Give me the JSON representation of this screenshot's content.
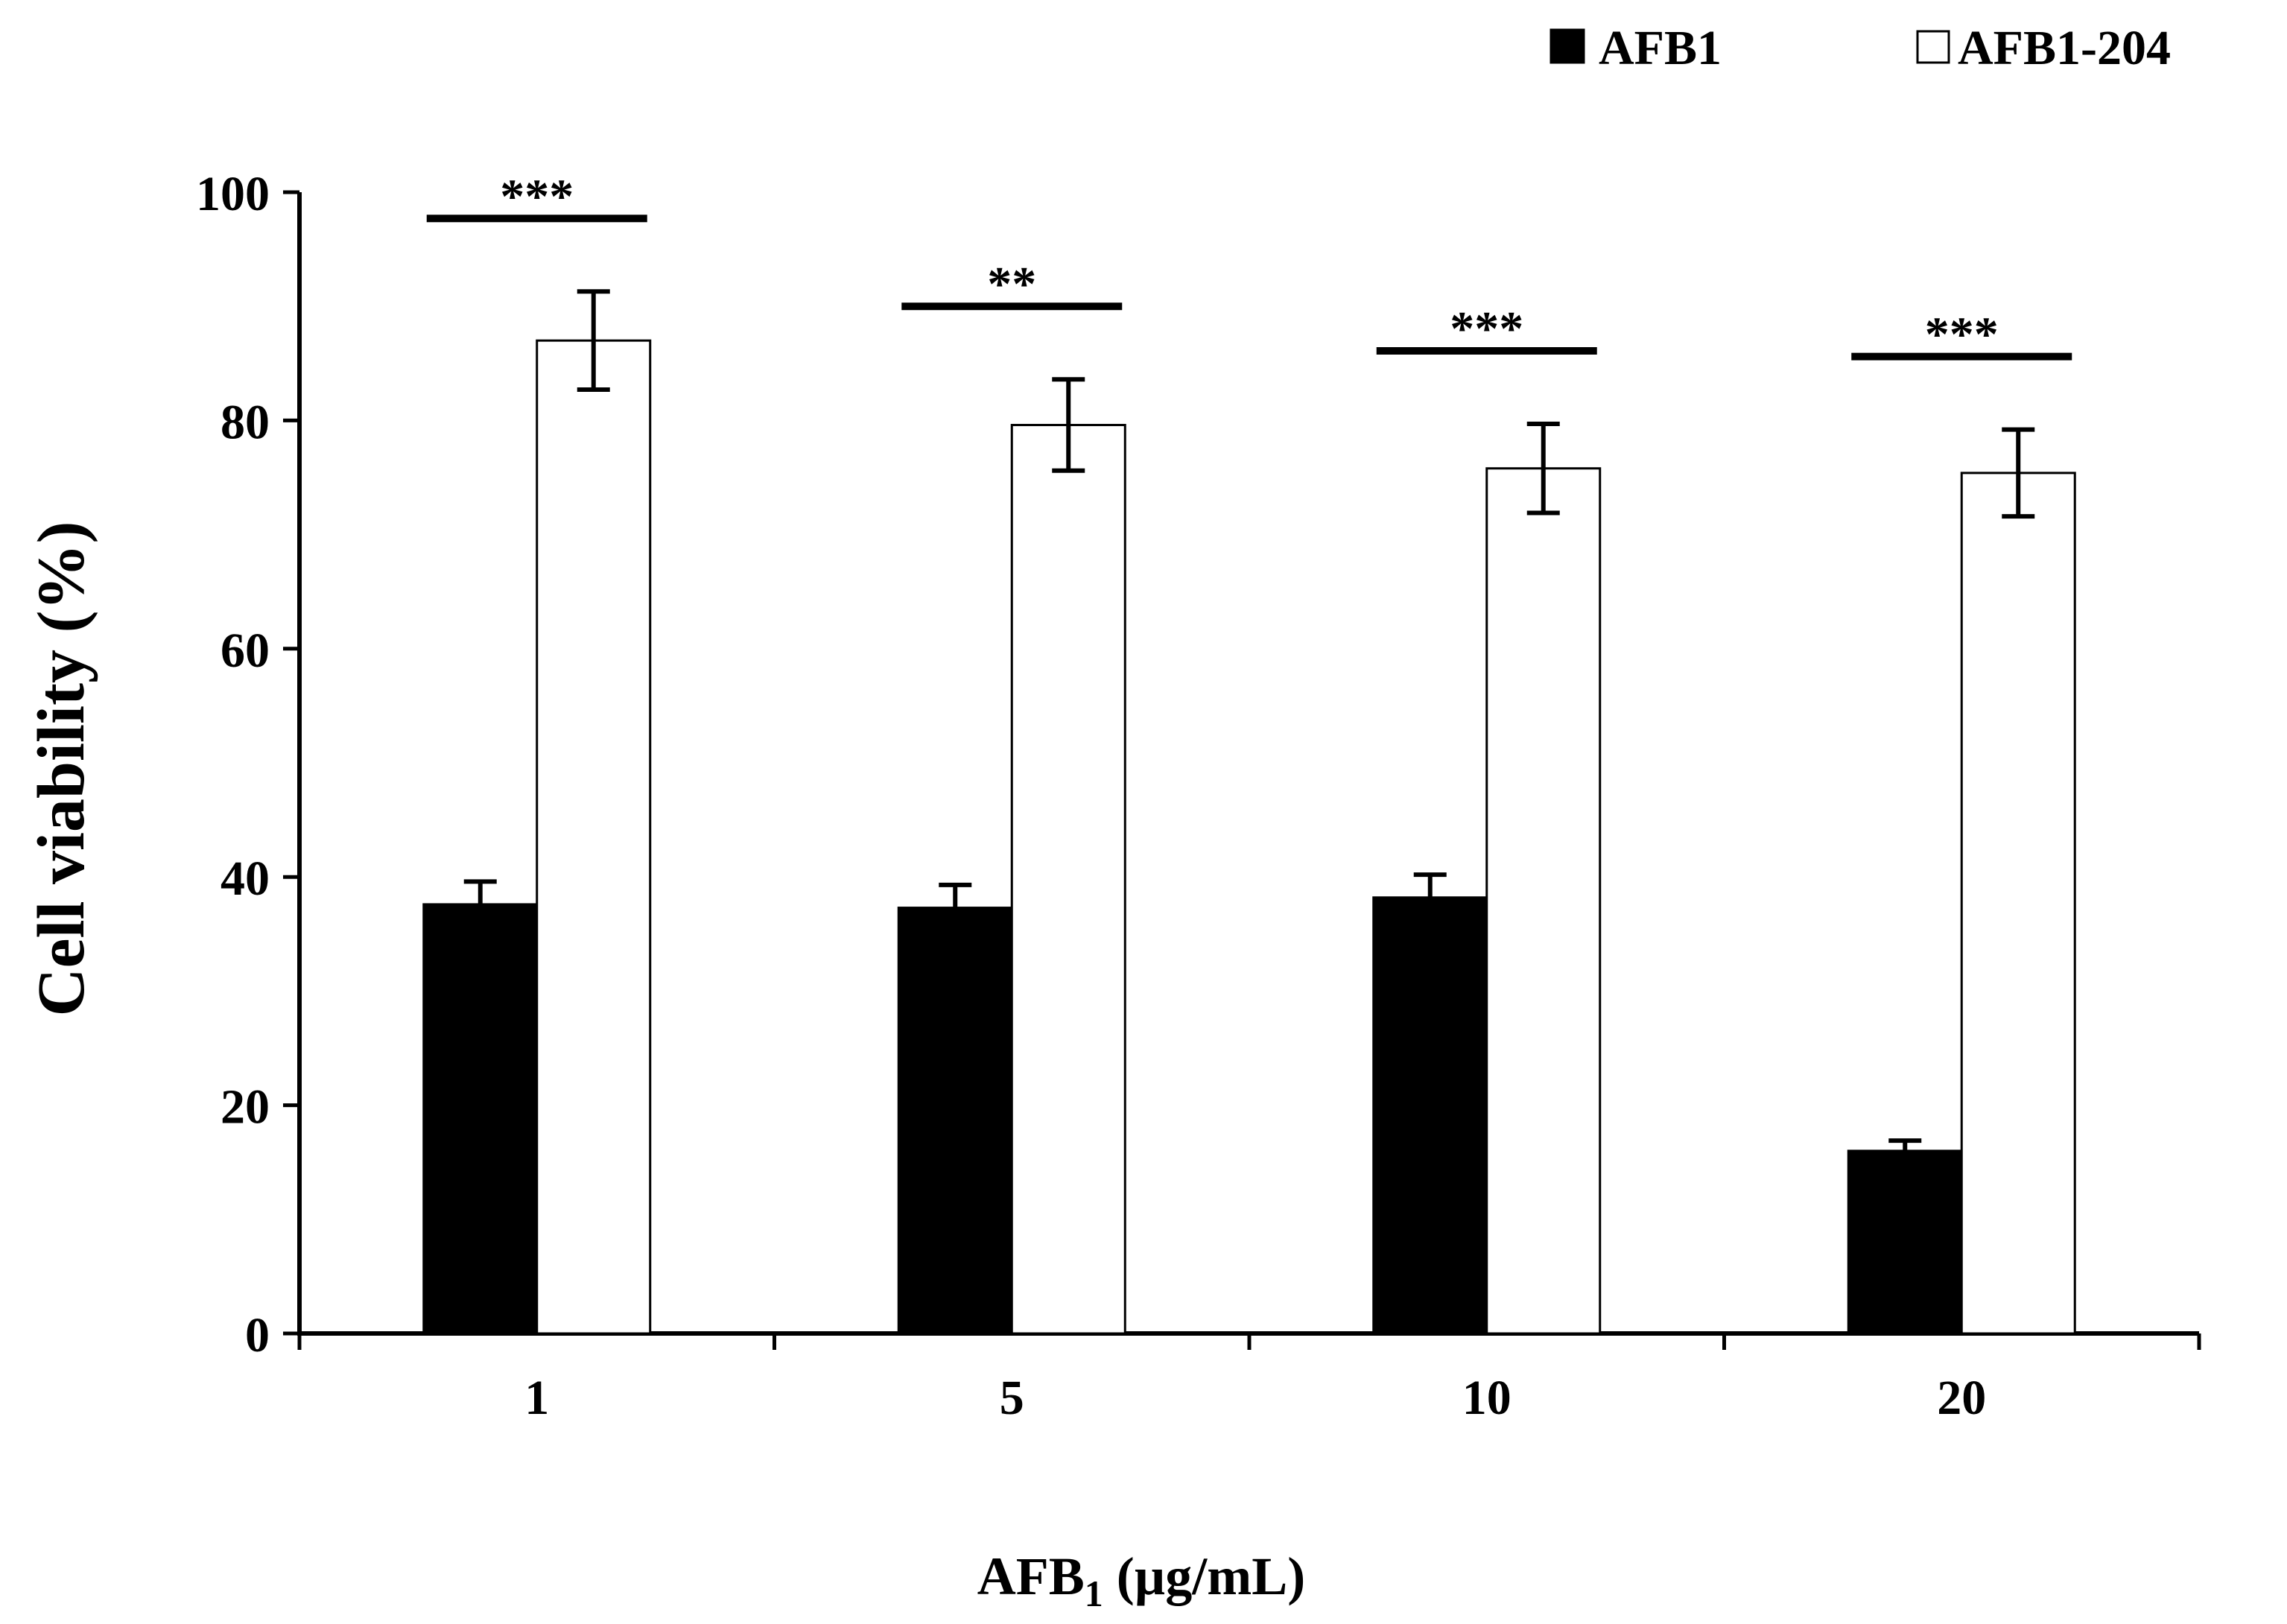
{
  "chart_data": {
    "type": "bar",
    "title": "",
    "xlabel_main": "AFB",
    "xlabel_sub": "1",
    "xlabel_unit": " (µg/mL)",
    "ylabel": "Cell viability (%)",
    "ylim": [
      0,
      100
    ],
    "yticks": [
      "0",
      "20",
      "40",
      "60",
      "80",
      "100"
    ],
    "categories": [
      "1",
      "5",
      "10",
      "20"
    ],
    "legend_position": "top-right",
    "series": [
      {
        "name": "AFB1",
        "fill": "#000000",
        "values": [
          37.6,
          37.3,
          38.2,
          16.0
        ],
        "errors": [
          2.0,
          2.0,
          2.0,
          0.9
        ]
      },
      {
        "name": "AFB1-204",
        "fill": "#ffffff",
        "values": [
          87.0,
          79.6,
          75.8,
          75.4
        ],
        "errors": [
          4.3,
          4.0,
          3.9,
          3.8
        ]
      }
    ],
    "significance": [
      "***",
      "**",
      "***",
      "***"
    ]
  }
}
